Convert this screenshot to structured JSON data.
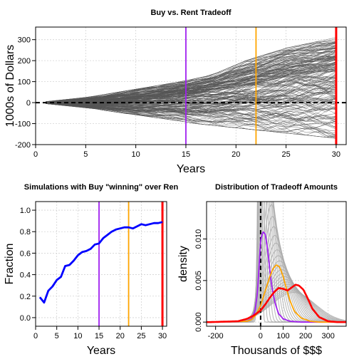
{
  "chart_data": [
    {
      "type": "line",
      "title": "Buy vs. Rent Tradeoff",
      "xlabel": "Years",
      "ylabel": "1000s of Dollars",
      "xlim": [
        0,
        31
      ],
      "ylim": [
        -200,
        360
      ],
      "xticks": [
        0,
        5,
        10,
        15,
        20,
        25,
        30
      ],
      "yticks": [
        -200,
        -100,
        0,
        100,
        200,
        300
      ],
      "grid": true,
      "reference_line": {
        "y": 0,
        "style": "dashed",
        "color": "#000000"
      },
      "series_count": 200,
      "series_band": {
        "x": [
          1,
          2,
          3,
          4,
          5,
          6,
          7,
          8,
          9,
          10,
          11,
          12,
          13,
          14,
          15,
          16,
          17,
          18,
          19,
          20,
          21,
          22,
          23,
          24,
          25,
          26,
          27,
          28,
          29,
          30
        ],
        "min": [
          -5,
          -10,
          -15,
          -20,
          -25,
          -30,
          -38,
          -45,
          -52,
          -58,
          -65,
          -72,
          -78,
          -85,
          -92,
          -100,
          -105,
          -110,
          -115,
          -120,
          -125,
          -130,
          -135,
          -140,
          -145,
          -150,
          -155,
          -160,
          -165,
          -170
        ],
        "max": [
          5,
          10,
          15,
          20,
          25,
          32,
          40,
          48,
          56,
          64,
          72,
          80,
          88,
          96,
          105,
          115,
          125,
          140,
          160,
          180,
          200,
          215,
          230,
          245,
          260,
          270,
          280,
          290,
          300,
          310
        ],
        "median": [
          -3,
          -5,
          -5,
          -4,
          -3,
          -1,
          1,
          3,
          6,
          9,
          13,
          17,
          22,
          28,
          34,
          41,
          48,
          55,
          62,
          70,
          78,
          85,
          92,
          100,
          108,
          116,
          124,
          132,
          140,
          148
        ]
      },
      "line_color": "#555555",
      "vlines": [
        {
          "x": 15,
          "color": "#a020f0"
        },
        {
          "x": 22,
          "color": "#ffa500"
        },
        {
          "x": 30,
          "color": "#ff0000"
        }
      ]
    },
    {
      "type": "line",
      "title": "Simulations with Buy \"winning\" over Ren",
      "xlabel": "Years",
      "ylabel": "Fraction",
      "xlim": [
        0,
        31
      ],
      "ylim": [
        -0.08,
        1.08
      ],
      "xticks": [
        0,
        5,
        10,
        15,
        20,
        25,
        30
      ],
      "yticks": [
        0.0,
        0.2,
        0.4,
        0.6,
        0.8,
        1.0
      ],
      "grid": true,
      "x": [
        1,
        2,
        3,
        4,
        5,
        6,
        7,
        8,
        9,
        10,
        11,
        12,
        13,
        14,
        15,
        16,
        17,
        18,
        19,
        20,
        21,
        22,
        23,
        24,
        25,
        26,
        27,
        28,
        29,
        30
      ],
      "values": [
        0.19,
        0.14,
        0.25,
        0.29,
        0.35,
        0.38,
        0.48,
        0.49,
        0.53,
        0.58,
        0.61,
        0.62,
        0.64,
        0.68,
        0.69,
        0.74,
        0.77,
        0.8,
        0.82,
        0.83,
        0.84,
        0.84,
        0.83,
        0.85,
        0.87,
        0.86,
        0.87,
        0.88,
        0.88,
        0.89
      ],
      "line_color": "#0000ff",
      "vlines": [
        {
          "x": 15,
          "color": "#a020f0"
        },
        {
          "x": 22,
          "color": "#ffa500"
        },
        {
          "x": 30,
          "color": "#ff0000"
        }
      ]
    },
    {
      "type": "area",
      "title": "Distribution of Tradeoff Amounts",
      "xlabel": "Thousands of $$$",
      "ylabel": "density",
      "xlim": [
        -240,
        380
      ],
      "ylim": [
        -0.0005,
        0.0145
      ],
      "xticks": [
        -200,
        0,
        100,
        200,
        300
      ],
      "yticks": [
        0.0,
        0.005,
        0.01
      ],
      "grid": true,
      "reference_line": {
        "x": 0,
        "style": "dashed",
        "color": "#000000"
      },
      "density_curves": [
        {
          "year": 15,
          "color": "#a020f0",
          "x": [
            -220,
            -60,
            -40,
            -25,
            -15,
            -10,
            -5,
            0,
            10,
            20,
            30,
            40,
            50,
            65,
            80,
            100,
            130,
            180,
            250,
            350
          ],
          "y": [
            0.0,
            0.0001,
            0.0004,
            0.0013,
            0.0033,
            0.0052,
            0.0075,
            0.0098,
            0.0109,
            0.0106,
            0.009,
            0.0065,
            0.0042,
            0.0022,
            0.001,
            0.0004,
            0.0001,
            0.0,
            0.0,
            0.0
          ]
        },
        {
          "year": 22,
          "color": "#ffa500",
          "x": [
            -220,
            -60,
            -40,
            -20,
            0,
            20,
            40,
            55,
            70,
            85,
            100,
            115,
            130,
            150,
            180,
            220,
            260,
            350
          ],
          "y": [
            0.0,
            0.0001,
            0.0003,
            0.0009,
            0.002,
            0.0037,
            0.0054,
            0.0064,
            0.0069,
            0.0066,
            0.0055,
            0.004,
            0.0026,
            0.0013,
            0.0005,
            0.0001,
            0.0,
            0.0
          ]
        },
        {
          "year": 30,
          "color": "#ff0000",
          "x": [
            -220,
            -100,
            -60,
            -30,
            0,
            20,
            40,
            60,
            80,
            100,
            120,
            140,
            155,
            170,
            190,
            210,
            230,
            260,
            300,
            340
          ],
          "y": [
            0.0,
            0.0001,
            0.0004,
            0.0008,
            0.0014,
            0.0021,
            0.0029,
            0.0036,
            0.0041,
            0.004,
            0.0038,
            0.0042,
            0.0045,
            0.0044,
            0.0039,
            0.0028,
            0.0016,
            0.0006,
            0.0001,
            0.0
          ]
        }
      ],
      "background_curves": 30,
      "background_color": "#aaaaaa"
    }
  ]
}
